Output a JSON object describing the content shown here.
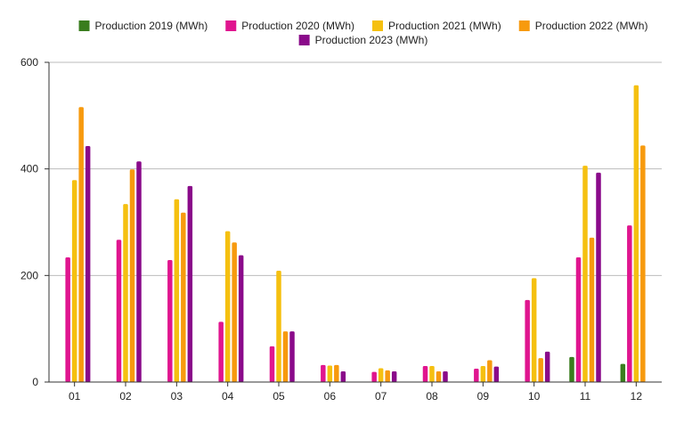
{
  "chart_data": {
    "type": "bar",
    "categories": [
      "01",
      "02",
      "03",
      "04",
      "05",
      "06",
      "07",
      "08",
      "09",
      "10",
      "11",
      "12"
    ],
    "series": [
      {
        "name": "Production 2019 (MWh)",
        "color": "#3a7d1e",
        "values": [
          null,
          null,
          null,
          null,
          null,
          null,
          null,
          null,
          null,
          null,
          47,
          34
        ]
      },
      {
        "name": "Production 2020 (MWh)",
        "color": "#e0158f",
        "values": [
          234,
          267,
          229,
          113,
          67,
          32,
          19,
          30,
          25,
          154,
          234,
          294
        ]
      },
      {
        "name": "Production 2021 (MWh)",
        "color": "#f5c010",
        "values": [
          379,
          334,
          343,
          283,
          209,
          31,
          26,
          30,
          30,
          195,
          406,
          557
        ]
      },
      {
        "name": "Production 2022 (MWh)",
        "color": "#f79a0e",
        "values": [
          516,
          399,
          318,
          262,
          95,
          32,
          22,
          20,
          41,
          45,
          271,
          444
        ]
      },
      {
        "name": "Production 2023 (MWh)",
        "color": "#8a0a8a",
        "values": [
          443,
          414,
          368,
          238,
          95,
          20,
          20,
          20,
          29,
          57,
          393,
          null
        ]
      }
    ],
    "ylim": [
      0,
      600
    ],
    "yticks": [
      0,
      200,
      400,
      600
    ],
    "grid": true,
    "legend": "top-center"
  }
}
